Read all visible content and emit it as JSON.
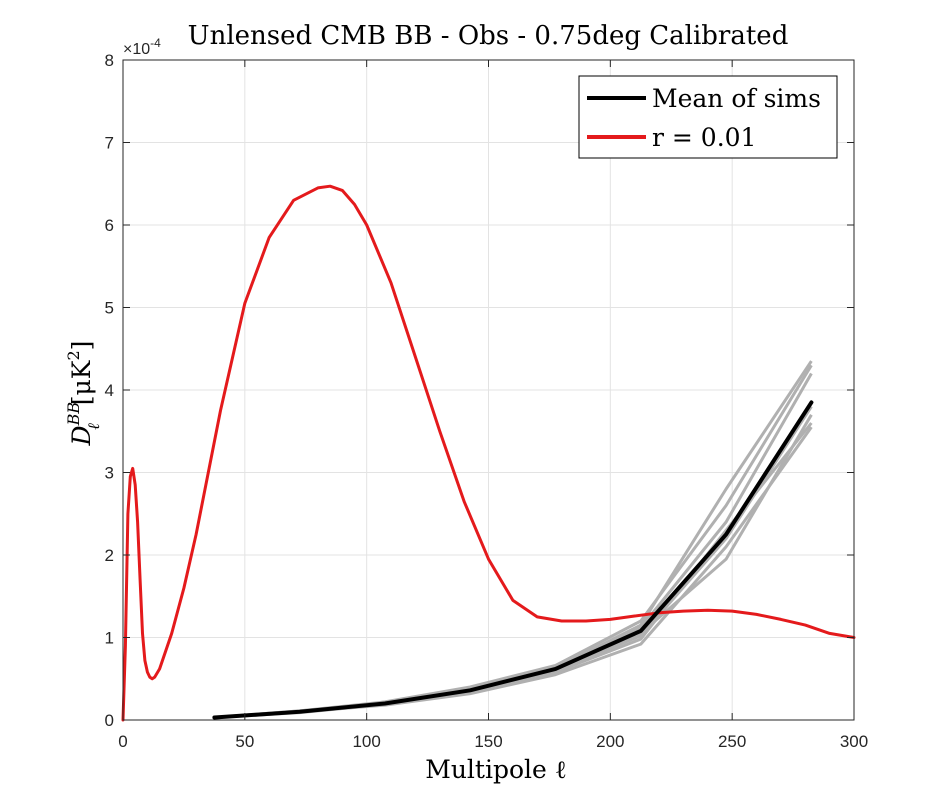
{
  "chart_data": {
    "type": "line",
    "title": "Unlensed CMB BB - Obs - 0.75deg Calibrated",
    "xlabel": "Multipole ℓ",
    "ylabel": "D_ℓ^BB [μK^2]",
    "ylabel_main": "D",
    "ylabel_sub": "ℓ",
    "ylabel_sup": "BB",
    "ylabel_unit": "[μK",
    "ylabel_unit_sup": "2",
    "ylabel_unit_close": "]",
    "y_multiplier": "×10",
    "y_multiplier_exp": "-4",
    "xlim": [
      0,
      300
    ],
    "ylim": [
      0,
      8
    ],
    "x_ticks": [
      0,
      50,
      100,
      150,
      200,
      250,
      300
    ],
    "y_ticks": [
      0,
      1,
      2,
      3,
      4,
      5,
      6,
      7,
      8
    ],
    "grid": true,
    "legend_position": "top-right",
    "legend": [
      "Mean of sims",
      "r = 0.01"
    ],
    "series": [
      {
        "name": "Mean of sims",
        "color": "#000000",
        "x": [
          37.5,
          72.5,
          107.5,
          142.5,
          177.5,
          212.5,
          247.5,
          282.5
        ],
        "y": [
          0.03,
          0.1,
          0.2,
          0.36,
          0.62,
          1.08,
          2.25,
          3.85
        ]
      },
      {
        "name": "r = 0.01",
        "color": "#e41a1c",
        "x": [
          0,
          1,
          2,
          3,
          4,
          5,
          6,
          7,
          8,
          9,
          10,
          11,
          12,
          13,
          15,
          20,
          25,
          30,
          40,
          50,
          60,
          70,
          80,
          85,
          90,
          95,
          100,
          110,
          120,
          130,
          140,
          150,
          160,
          170,
          180,
          190,
          200,
          210,
          220,
          230,
          240,
          250,
          260,
          270,
          280,
          290,
          300
        ],
        "y": [
          0.0,
          0.9,
          2.5,
          2.95,
          3.05,
          2.85,
          2.4,
          1.7,
          1.05,
          0.72,
          0.58,
          0.52,
          0.5,
          0.52,
          0.62,
          1.05,
          1.6,
          2.25,
          3.75,
          5.05,
          5.85,
          6.3,
          6.45,
          6.47,
          6.42,
          6.25,
          6.0,
          5.3,
          4.4,
          3.5,
          2.65,
          1.95,
          1.45,
          1.25,
          1.2,
          1.2,
          1.22,
          1.26,
          1.3,
          1.32,
          1.33,
          1.32,
          1.28,
          1.22,
          1.15,
          1.05,
          1.0
        ]
      }
    ],
    "sims": {
      "color": "#b0b0b0",
      "x": [
        37.5,
        72.5,
        107.5,
        142.5,
        177.5,
        212.5,
        247.5,
        282.5
      ],
      "runs": [
        [
          0.03,
          0.1,
          0.18,
          0.32,
          0.55,
          0.92,
          2.1,
          3.55
        ],
        [
          0.03,
          0.11,
          0.22,
          0.4,
          0.66,
          1.2,
          2.6,
          4.3
        ],
        [
          0.03,
          0.09,
          0.19,
          0.35,
          0.6,
          1.05,
          1.95,
          3.7
        ],
        [
          0.03,
          0.1,
          0.21,
          0.38,
          0.63,
          1.15,
          2.8,
          4.35
        ],
        [
          0.03,
          0.1,
          0.2,
          0.34,
          0.58,
          0.98,
          2.3,
          3.6
        ],
        [
          0.03,
          0.11,
          0.2,
          0.37,
          0.65,
          1.12,
          2.4,
          4.2
        ],
        [
          0.03,
          0.1,
          0.19,
          0.33,
          0.61,
          1.02,
          2.2,
          3.8
        ]
      ]
    }
  }
}
